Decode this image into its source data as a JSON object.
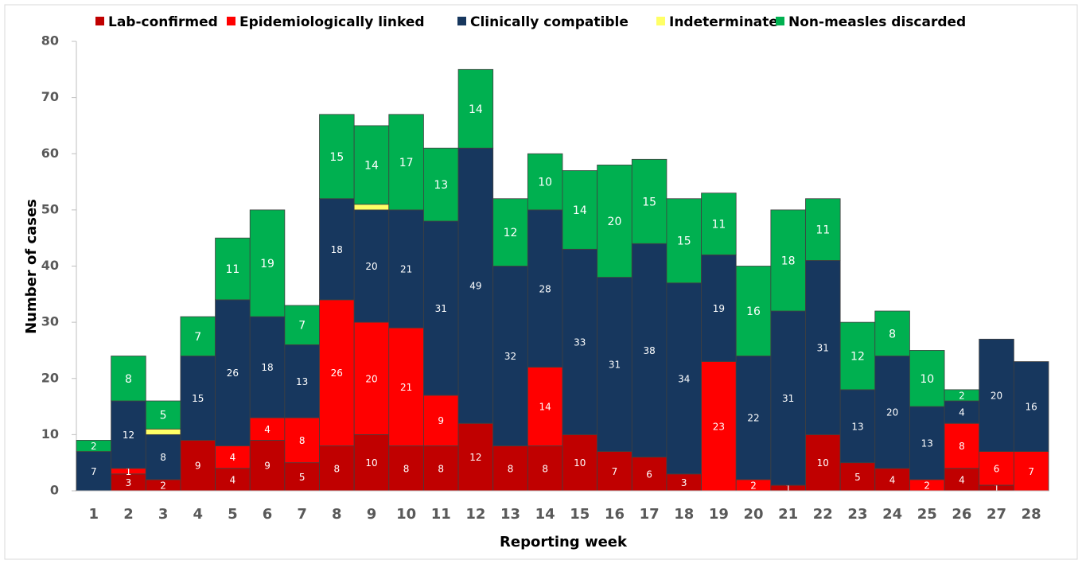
{
  "chart_data": {
    "type": "stacked_bar",
    "xlabel": "Reporting week",
    "ylabel": "Number of cases",
    "categories": [
      "1",
      "2",
      "3",
      "4",
      "5",
      "6",
      "7",
      "8",
      "9",
      "10",
      "11",
      "12",
      "13",
      "14",
      "15",
      "16",
      "17",
      "18",
      "19",
      "20",
      "21",
      "22",
      "23",
      "24",
      "25",
      "26",
      "27",
      "28"
    ],
    "ylim": [
      0,
      80
    ],
    "yticks": [
      0,
      10,
      20,
      30,
      40,
      50,
      60,
      70,
      80
    ],
    "series": [
      {
        "name": "Lab-confirmed",
        "color": "#c00000",
        "values": [
          null,
          3,
          2,
          9,
          4,
          9,
          5,
          8,
          10,
          8,
          8,
          12,
          8,
          8,
          10,
          7,
          6,
          3,
          null,
          null,
          1,
          10,
          5,
          4,
          null,
          4,
          1,
          null
        ]
      },
      {
        "name": "Epidemiologically linked",
        "color": "#ff0000",
        "values": [
          null,
          1,
          null,
          null,
          4,
          4,
          8,
          26,
          20,
          21,
          9,
          null,
          null,
          14,
          null,
          null,
          null,
          null,
          23,
          2,
          null,
          null,
          null,
          null,
          2,
          8,
          6,
          7
        ]
      },
      {
        "name": "Clinically compatible",
        "color": "#17375e",
        "values": [
          7,
          12,
          8,
          15,
          26,
          18,
          13,
          18,
          20,
          21,
          31,
          49,
          32,
          28,
          33,
          31,
          38,
          34,
          19,
          22,
          31,
          31,
          13,
          20,
          13,
          4,
          20,
          16
        ]
      },
      {
        "name": "Indeterminate",
        "color": "#ffff66",
        "labels": false,
        "values": [
          null,
          null,
          1,
          null,
          null,
          null,
          null,
          null,
          1,
          null,
          null,
          null,
          null,
          null,
          null,
          null,
          null,
          null,
          null,
          null,
          null,
          null,
          null,
          null,
          null,
          null,
          null,
          null
        ]
      },
      {
        "name": "Non-measles discarded",
        "color": "#00b050",
        "values": [
          2,
          8,
          5,
          7,
          11,
          19,
          7,
          15,
          14,
          17,
          13,
          14,
          12,
          10,
          14,
          20,
          15,
          15,
          11,
          16,
          18,
          11,
          12,
          8,
          10,
          2,
          null,
          null
        ]
      }
    ]
  }
}
